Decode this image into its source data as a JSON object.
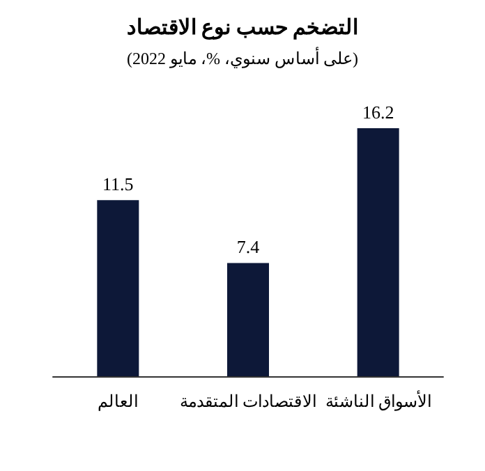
{
  "chart_data": {
    "type": "bar",
    "title": "التضخم حسب نوع الاقتصاد",
    "subtitle": "(على أساس سنوي، %، مايو 2022)",
    "categories": [
      "العالم",
      "الاقتصادات المتقدمة",
      "الأسواق الناشئة"
    ],
    "values": [
      11.5,
      7.4,
      16.2
    ],
    "color": "#0d1838",
    "data_labels": true
  }
}
